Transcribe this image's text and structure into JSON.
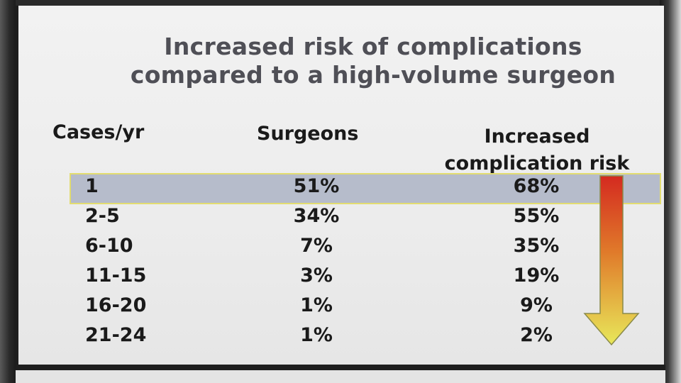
{
  "title": {
    "line1": "Increased risk of complications",
    "line2": "compared to a high-volume surgeon"
  },
  "headers": {
    "cases": "Cases/yr",
    "surgeons": "Surgeons",
    "risk_line1": "Increased",
    "risk_line2": "complication risk"
  },
  "rows": [
    {
      "cases": "1",
      "surgeons": "51%",
      "risk": "68%"
    },
    {
      "cases": "2-5",
      "surgeons": "34%",
      "risk": "55%"
    },
    {
      "cases": "6-10",
      "surgeons": "7%",
      "risk": "35%"
    },
    {
      "cases": "11-15",
      "surgeons": "3%",
      "risk": "19%"
    },
    {
      "cases": "16-20",
      "surgeons": "1%",
      "risk": "9%"
    },
    {
      "cases": "21-24",
      "surgeons": "1%",
      "risk": "2%"
    }
  ],
  "colors": {
    "highlight": "#b6bccb",
    "highlight_border": "#e2dc70",
    "arrow_top": "#d42a20",
    "arrow_bottom": "#e8e85a"
  },
  "icons": {
    "arrow": "gradient-down-arrow-icon"
  }
}
